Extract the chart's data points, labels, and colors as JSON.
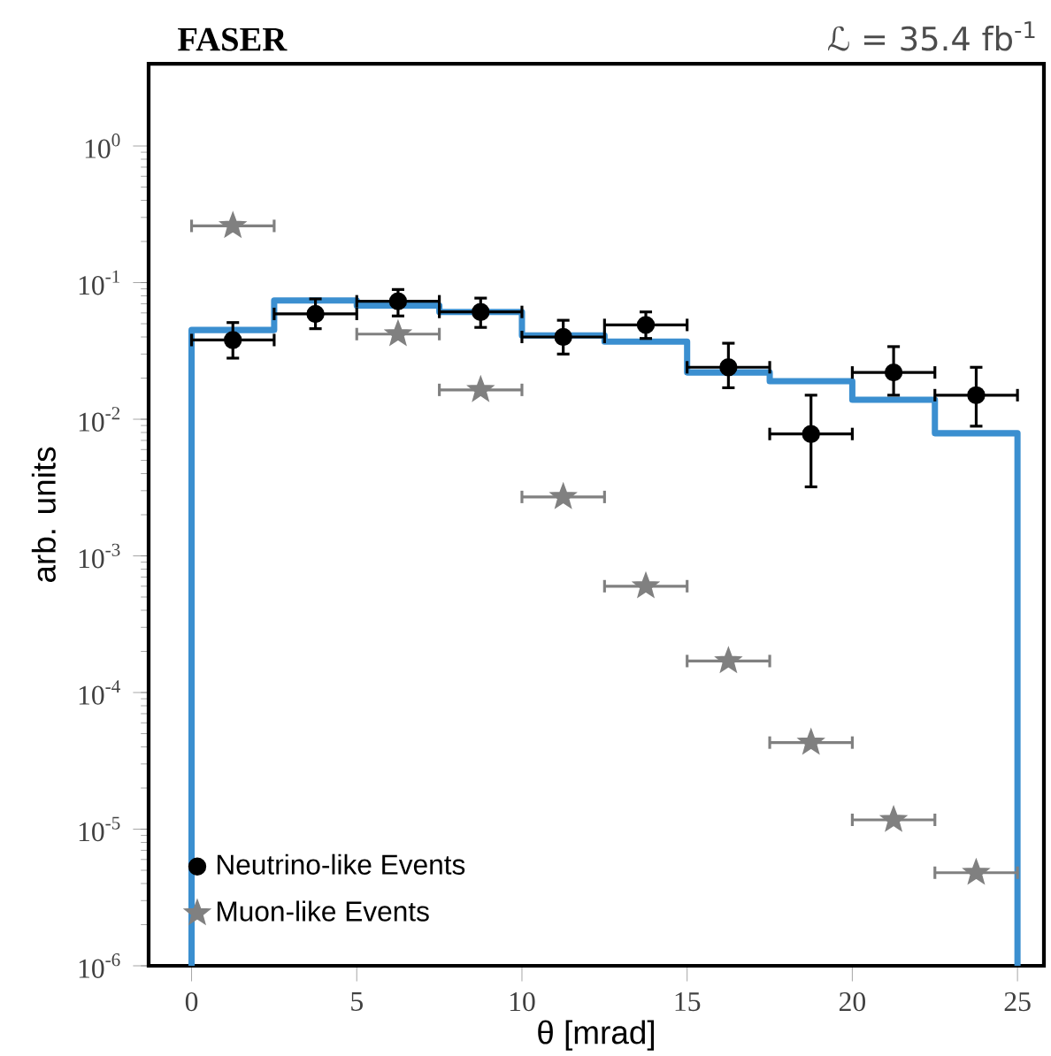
{
  "chart_data": {
    "type": "scatter",
    "title": "FASER",
    "subtitle": "ℒ = 35.4 fb$^{-1}$",
    "xlabel": "θ [mrad]",
    "ylabel": "arb. units",
    "log": "y",
    "legend": "bottom left",
    "xlim": [
      -1.3,
      25.8
    ],
    "ylim": [
      1e-06,
      4
    ],
    "xticks": [
      0,
      5,
      10,
      15,
      20,
      25
    ],
    "yticks": [
      {
        "value": 1e-06,
        "label": "10$^{-6}$"
      },
      {
        "value": 1e-05,
        "label": "10$^{-5}$"
      },
      {
        "value": 0.0001,
        "label": "10$^{-4}$"
      },
      {
        "value": 0.001,
        "label": "10$^{-3}$"
      },
      {
        "value": 0.01,
        "label": "10$^{-2}$"
      },
      {
        "value": 0.1,
        "label": "10$^{-1}$"
      },
      {
        "value": 1,
        "label": "10$^{0}$"
      }
    ],
    "series": [
      {
        "type": "histogram",
        "color": "#3b8fd0",
        "bins": [
          0,
          2.5,
          5,
          7.5,
          10,
          12.5,
          15,
          17.5,
          20,
          22.5,
          25
        ],
        "values": [
          0.045,
          0.074,
          0.068,
          0.061,
          0.041,
          0.037,
          0.022,
          0.019,
          0.0139,
          0.0079
        ]
      },
      {
        "name": "Neutrino-like Events",
        "color": "#000000",
        "marker": "circle",
        "x": [
          1.25,
          3.75,
          6.25,
          8.75,
          11.25,
          13.75,
          16.25,
          18.75,
          21.25,
          23.75
        ],
        "values": [
          0.038,
          0.059,
          0.073,
          0.061,
          0.04,
          0.049,
          0.024,
          0.0078,
          0.022,
          0.015
        ],
        "errors": [
          [
            0.028,
            0.051
          ],
          [
            0.046,
            0.076
          ],
          [
            0.057,
            0.089
          ],
          [
            0.047,
            0.077
          ],
          [
            0.03,
            0.053
          ],
          [
            0.039,
            0.061
          ],
          [
            0.017,
            0.036
          ],
          [
            0.0032,
            0.015
          ],
          [
            0.015,
            0.034
          ],
          [
            0.0089,
            0.024
          ]
        ],
        "xerrors": [
          1.25,
          1.25,
          1.25,
          1.25,
          1.25,
          1.25,
          1.25,
          1.25,
          1.25,
          1.25
        ]
      },
      {
        "name": "Muon-like Events",
        "color": "#808080",
        "marker": "star",
        "x": [
          1.25,
          3.75,
          6.25,
          8.75,
          11.25,
          13.75,
          16.25,
          18.75,
          21.25,
          23.75
        ],
        "values": [
          0.26,
          null,
          0.042,
          0.0164,
          0.0027,
          0.0006,
          0.00017,
          4.3e-05,
          1.17e-05,
          4.8e-06
        ],
        "xerrors": [
          1.25,
          null,
          1.25,
          1.25,
          1.25,
          1.25,
          1.25,
          1.25,
          1.25,
          1.25
        ]
      }
    ]
  }
}
